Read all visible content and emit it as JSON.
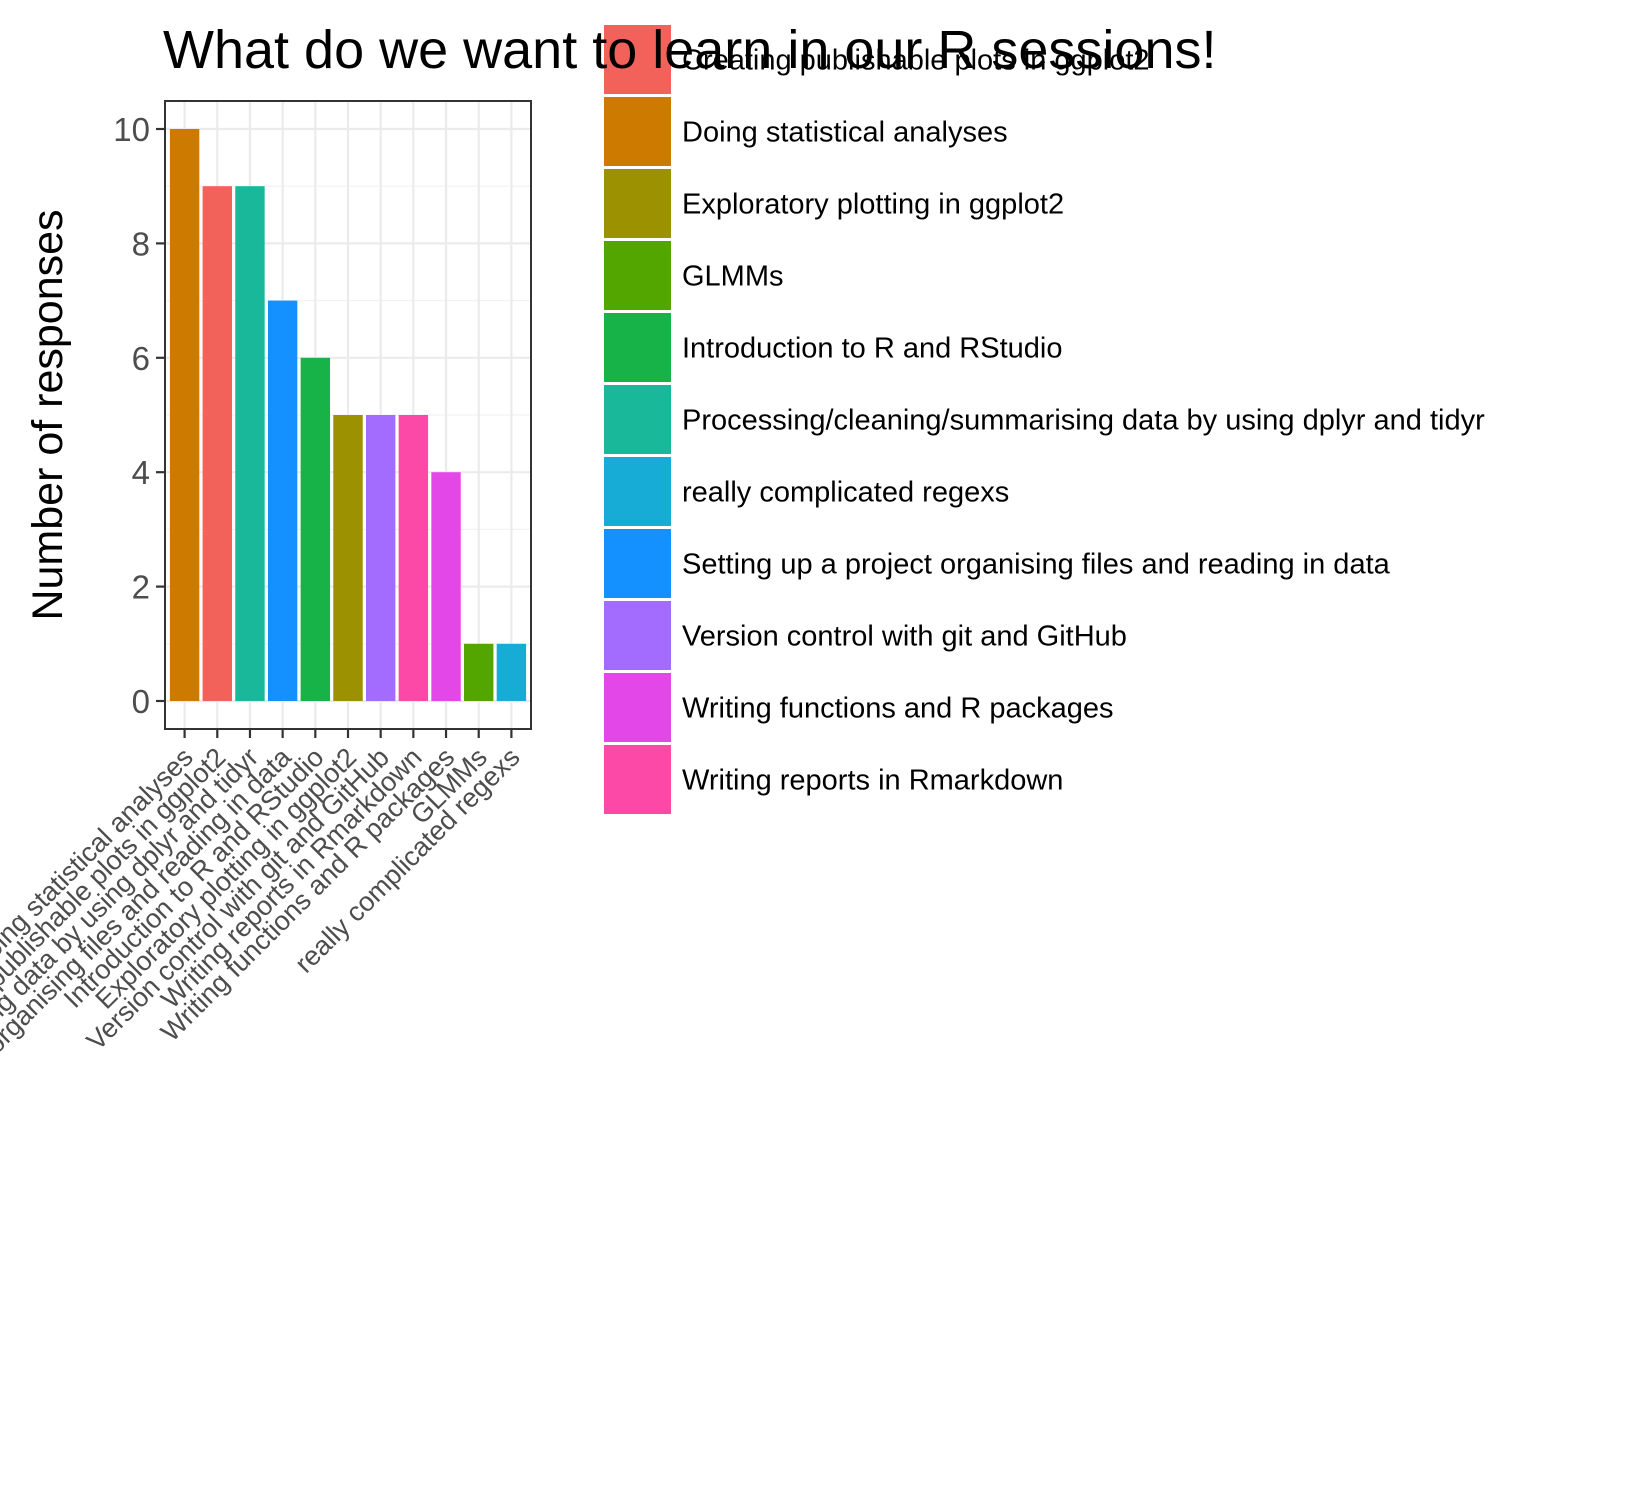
{
  "chart_data": {
    "type": "bar",
    "title": "What do we want to learn in our R sessions!",
    "xlabel": "",
    "ylabel": "Number of responses",
    "ylim": [
      0,
      10.5
    ],
    "yticks": [
      0,
      2,
      4,
      6,
      8,
      10
    ],
    "grid": true,
    "legend_position": "right",
    "categories": [
      "Doing statistical analyses",
      "Creating publishable plots in ggplot2",
      "Processing/cleaning/summarising data by using dplyr and tidyr",
      "Setting up a project organising files and reading in data",
      "Introduction to R and RStudio",
      "Exploratory plotting in ggplot2",
      "Version control with git and GitHub",
      "Writing reports in Rmarkdown",
      "Writing functions and R packages",
      "GLMMs",
      "really complicated regexs"
    ],
    "values": [
      10,
      9,
      9,
      7,
      6,
      5,
      5,
      5,
      4,
      1,
      1
    ],
    "bar_colors": [
      "#CD7A00",
      "#F2625A",
      "#1AB89A",
      "#1591FF",
      "#18B348",
      "#9C9100",
      "#A46BFF",
      "#FC49A7",
      "#E447E7",
      "#53A500",
      "#16ACD6"
    ],
    "legend": [
      {
        "label": "Creating publishable plots in ggplot2",
        "color": "#F2625A"
      },
      {
        "label": "Doing statistical analyses",
        "color": "#CD7A00"
      },
      {
        "label": "Exploratory plotting in ggplot2",
        "color": "#9C9100"
      },
      {
        "label": "GLMMs",
        "color": "#53A500"
      },
      {
        "label": "Introduction to R and RStudio",
        "color": "#18B348"
      },
      {
        "label": "Processing/cleaning/summarising data by using dplyr and tidyr",
        "color": "#1AB89A"
      },
      {
        "label": "really complicated regexs",
        "color": "#16ACD6"
      },
      {
        "label": "Setting up a project organising files and reading in data",
        "color": "#1591FF"
      },
      {
        "label": "Version control with git and GitHub",
        "color": "#A46BFF"
      },
      {
        "label": "Writing functions and R packages",
        "color": "#E447E7"
      },
      {
        "label": "Writing reports in Rmarkdown",
        "color": "#FC49A7"
      }
    ]
  }
}
